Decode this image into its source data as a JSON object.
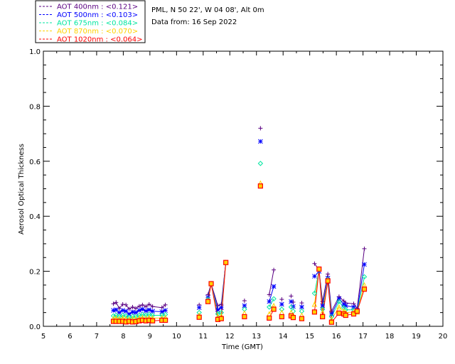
{
  "site": "PML, N 50 22', W 04 08', Alt 0m",
  "date_line": "Data from: 16 Sep 2022",
  "chart_data": {
    "type": "scatter",
    "xlabel": "Time (GMT)",
    "ylabel": "Aerosol Optical Thickness",
    "xlim": [
      5,
      20
    ],
    "ylim": [
      0,
      1.0
    ],
    "xticks": [
      5,
      6,
      7,
      8,
      9,
      10,
      11,
      12,
      13,
      14,
      15,
      16,
      17,
      18,
      19,
      20
    ],
    "yticks": [
      0.0,
      0.2,
      0.4,
      0.6,
      0.8,
      1.0
    ],
    "ytick_labels": [
      "0.0",
      "0.2",
      "0.4",
      "0.6",
      "0.8",
      "1.0"
    ],
    "x": [
      7.63,
      7.73,
      7.85,
      7.98,
      8.1,
      8.22,
      8.35,
      8.47,
      8.6,
      8.72,
      8.85,
      8.97,
      9.1,
      9.45,
      9.58,
      10.85,
      11.18,
      11.3,
      11.55,
      11.68,
      11.85,
      12.55,
      13.15,
      13.48,
      13.65,
      13.95,
      14.3,
      14.38,
      14.7,
      15.18,
      15.35,
      15.48,
      15.68,
      15.82,
      16.1,
      16.28,
      16.35,
      16.65,
      16.78,
      17.05
    ],
    "series": [
      {
        "name": "AOT  400nm",
        "legend": "AOT  400nm : <0.121>",
        "color": "#5a0082",
        "marker": "plus",
        "values": [
          0.082,
          0.087,
          0.065,
          0.08,
          0.078,
          0.063,
          0.07,
          0.065,
          0.073,
          0.078,
          0.072,
          0.08,
          0.072,
          0.068,
          0.078,
          0.078,
          0.115,
          0.155,
          0.075,
          0.08,
          0.232,
          0.093,
          0.72,
          0.115,
          0.205,
          0.098,
          0.11,
          0.088,
          0.085,
          0.228,
          0.205,
          0.09,
          0.19,
          0.055,
          0.108,
          0.092,
          0.085,
          0.082,
          0.065,
          0.282
        ],
        "lines": [
          [
            0,
            14
          ],
          [
            16,
            20
          ],
          [
            23,
            24
          ],
          [
            29,
            39
          ]
        ]
      },
      {
        "name": "AOT  500nm",
        "legend": "AOT  500nm : <0.103>",
        "color": "#0000ff",
        "marker": "star",
        "values": [
          0.058,
          0.06,
          0.05,
          0.058,
          0.055,
          0.045,
          0.052,
          0.05,
          0.058,
          0.062,
          0.056,
          0.06,
          0.055,
          0.053,
          0.058,
          0.068,
          0.105,
          0.155,
          0.06,
          0.068,
          0.232,
          0.075,
          0.672,
          0.09,
          0.145,
          0.08,
          0.09,
          0.072,
          0.07,
          0.182,
          0.2,
          0.075,
          0.175,
          0.045,
          0.1,
          0.08,
          0.075,
          0.07,
          0.058,
          0.225
        ],
        "lines": [
          [
            0,
            14
          ],
          [
            16,
            20
          ],
          [
            23,
            24
          ],
          [
            29,
            39
          ]
        ]
      },
      {
        "name": "AOT  675nm",
        "legend": "AOT  675nm : <0.084>",
        "color": "#00e6a0",
        "marker": "diamond",
        "values": [
          0.038,
          0.04,
          0.035,
          0.04,
          0.038,
          0.032,
          0.036,
          0.035,
          0.04,
          0.043,
          0.04,
          0.043,
          0.04,
          0.04,
          0.043,
          0.05,
          0.098,
          0.155,
          0.045,
          0.05,
          0.232,
          0.062,
          0.592,
          0.07,
          0.1,
          0.062,
          0.07,
          0.055,
          0.055,
          0.12,
          0.205,
          0.062,
          0.17,
          0.035,
          0.09,
          0.068,
          0.06,
          0.06,
          0.052,
          0.18
        ],
        "lines": [
          [
            0,
            14
          ],
          [
            16,
            20
          ],
          [
            23,
            24
          ],
          [
            29,
            39
          ]
        ]
      },
      {
        "name": "AOT  870nm",
        "legend": "AOT  870nm : <0.070>",
        "color": "#ffd200",
        "marker": "triangle",
        "values": [
          0.028,
          0.03,
          0.027,
          0.03,
          0.028,
          0.025,
          0.027,
          0.027,
          0.03,
          0.032,
          0.03,
          0.032,
          0.03,
          0.03,
          0.032,
          0.04,
          0.093,
          0.155,
          0.035,
          0.038,
          0.232,
          0.048,
          0.52,
          0.045,
          0.075,
          0.05,
          0.05,
          0.04,
          0.04,
          0.08,
          0.208,
          0.05,
          0.168,
          0.025,
          0.07,
          0.055,
          0.05,
          0.052,
          0.052,
          0.15
        ],
        "lines": [
          [
            0,
            14
          ],
          [
            16,
            20
          ],
          [
            23,
            24
          ],
          [
            29,
            39
          ]
        ]
      },
      {
        "name": "AOT 1020nm",
        "legend": "AOT 1020nm : <0.064>",
        "color": "#ff0000",
        "marker": "square",
        "values": [
          0.018,
          0.018,
          0.018,
          0.018,
          0.016,
          0.018,
          0.016,
          0.017,
          0.02,
          0.022,
          0.02,
          0.022,
          0.02,
          0.022,
          0.022,
          0.033,
          0.09,
          0.155,
          0.025,
          0.028,
          0.232,
          0.035,
          0.51,
          0.03,
          0.062,
          0.035,
          0.038,
          0.032,
          0.028,
          0.052,
          0.208,
          0.035,
          0.165,
          0.015,
          0.048,
          0.045,
          0.04,
          0.045,
          0.055,
          0.135
        ],
        "lines": [
          [
            0,
            14
          ],
          [
            16,
            20
          ],
          [
            23,
            24
          ],
          [
            29,
            39
          ]
        ]
      }
    ]
  }
}
